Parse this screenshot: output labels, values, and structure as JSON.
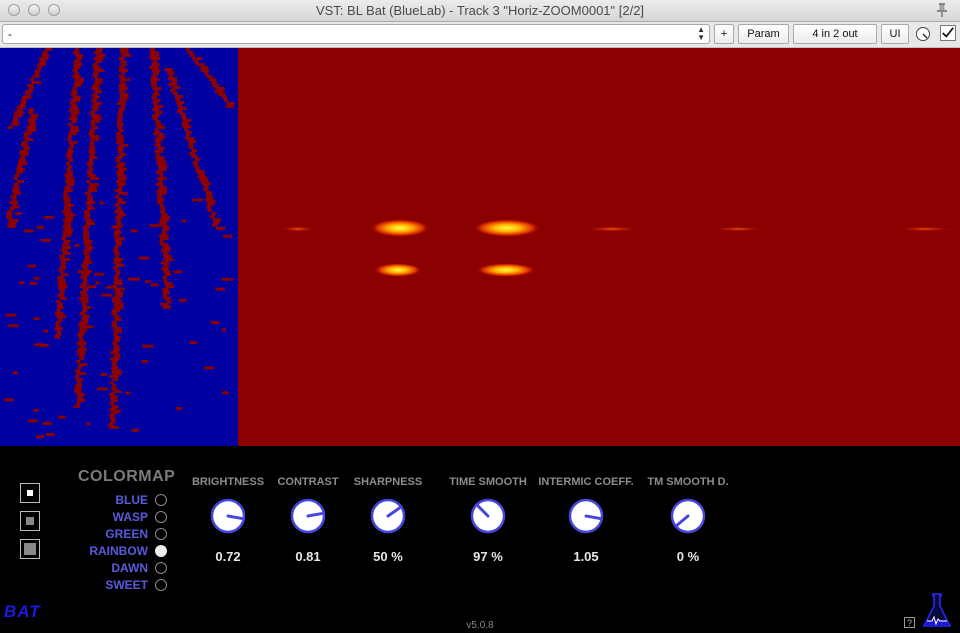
{
  "window": {
    "title": "VST: BL Bat (BlueLab) - Track 3 \"Horiz-ZOOM0001\" [2/2]"
  },
  "toolbar": {
    "preset_value": "-",
    "add_label": "+",
    "param_label": "Param",
    "io_label": "4 in 2 out",
    "ui_label": "UI"
  },
  "colormap": {
    "title": "COLORMAP",
    "options": [
      "BLUE",
      "WASP",
      "GREEN",
      "RAINBOW",
      "DAWN",
      "SWEET"
    ],
    "selected": "RAINBOW"
  },
  "knobs": [
    {
      "label": "BRIGHTNESS",
      "value": "0.72"
    },
    {
      "label": "CONTRAST",
      "value": "0.81"
    },
    {
      "label": "SHARPNESS",
      "value": "50 %"
    },
    {
      "label": "TIME SMOOTH",
      "value": "97 %"
    },
    {
      "label": "INTERMIC COEFF.",
      "value": "1.05"
    },
    {
      "label": "TM SMOOTH D.",
      "value": "0 %"
    }
  ],
  "footer": {
    "logo": "BAT",
    "version": "v5.0.8",
    "help": "?"
  },
  "colors": {
    "spectrum_bg": "#8b0000",
    "left_bg": "#0000a0",
    "accent": "#5a5adf"
  }
}
